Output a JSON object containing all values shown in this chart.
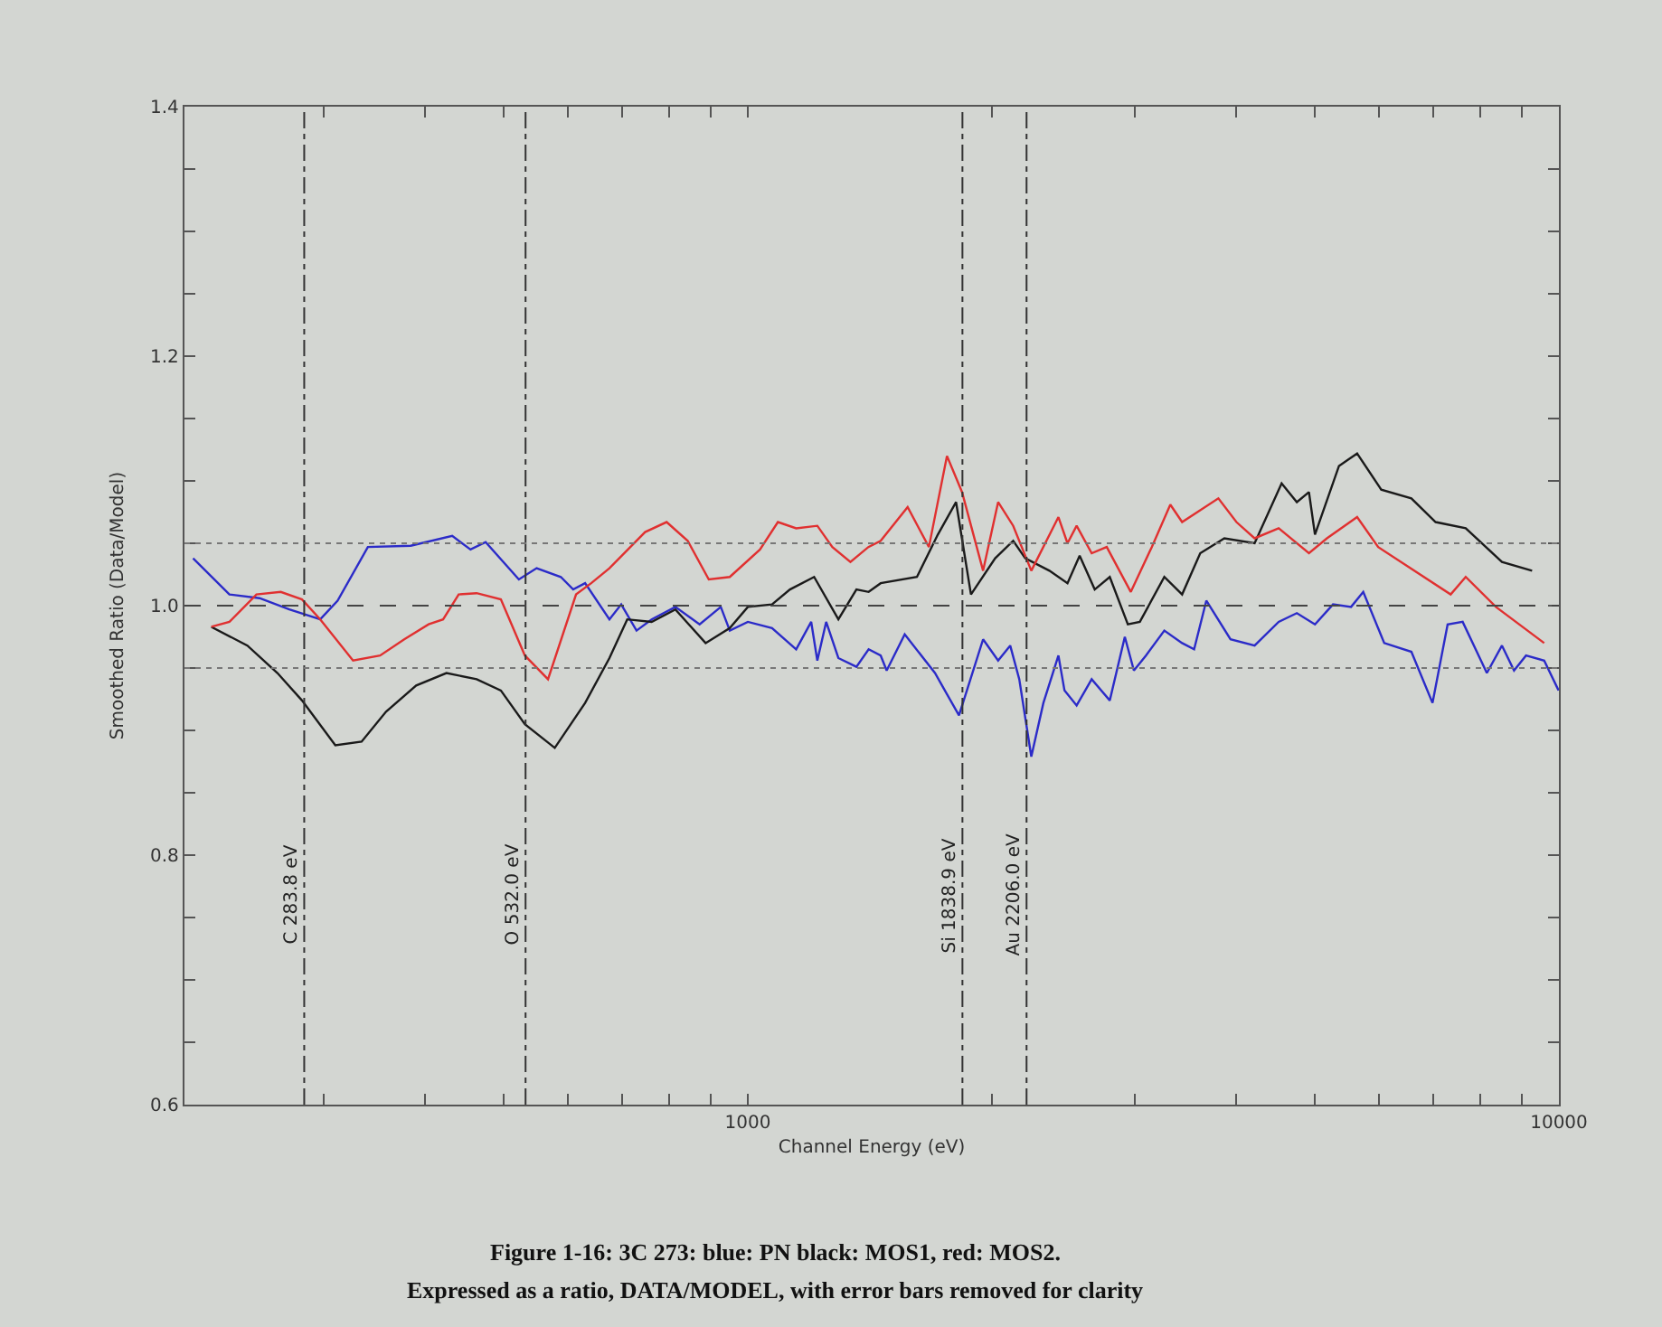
{
  "chart_data": {
    "type": "line",
    "xlabel": "Channel Energy (eV)",
    "ylabel": "Smoothed Ratio (Data/Model)",
    "log": "x",
    "grid": false,
    "marker": "none",
    "line_style": "solid",
    "xlim": [
      202,
      10000
    ],
    "xticks": [
      {
        "value": 300,
        "label": null
      },
      {
        "value": 400,
        "label": null
      },
      {
        "value": 500,
        "label": null
      },
      {
        "value": 600,
        "label": null
      },
      {
        "value": 700,
        "label": null
      },
      {
        "value": 800,
        "label": null
      },
      {
        "value": 900,
        "label": null
      },
      1000,
      {
        "value": 2000,
        "label": null
      },
      {
        "value": 3000,
        "label": null
      },
      {
        "value": 4000,
        "label": null
      },
      {
        "value": 5000,
        "label": null
      },
      {
        "value": 6000,
        "label": null
      },
      {
        "value": 7000,
        "label": null
      },
      {
        "value": 8000,
        "label": null
      },
      {
        "value": 9000,
        "label": null
      },
      10000
    ],
    "ylim": [
      0.6,
      1.4
    ],
    "yticks": [
      0.6,
      {
        "value": 0.65,
        "label": null
      },
      {
        "value": 0.7,
        "label": null
      },
      {
        "value": 0.75,
        "label": null
      },
      0.8,
      {
        "value": 0.85,
        "label": null
      },
      {
        "value": 0.9,
        "label": null
      },
      {
        "value": 0.95,
        "label": null
      },
      {
        "value": 1,
        "label": "1.0"
      },
      {
        "value": 1.05,
        "label": null
      },
      {
        "value": 1.1,
        "label": null
      },
      {
        "value": 1.15,
        "label": null
      },
      1.2,
      {
        "value": 1.25,
        "label": null
      },
      {
        "value": 1.3,
        "label": null
      },
      {
        "value": 1.35,
        "label": null
      },
      1.4
    ],
    "series": [
      {
        "color": "#2b2bc8",
        "x": [
          207,
          229.5,
          250,
          272,
          297,
          312,
          340,
          384,
          432,
          455,
          475,
          522,
          549,
          588,
          609,
          630,
          675,
          698,
          729,
          761,
          814,
          872,
          926,
          950,
          1000,
          1071,
          1147,
          1197,
          1218,
          1249,
          1293,
          1361,
          1409,
          1458,
          1483,
          1561,
          1701,
          1821,
          1950,
          2035,
          2106,
          2161,
          2236,
          2314,
          2415,
          2457,
          2543,
          2654,
          2794,
          2916,
          2992,
          3096,
          3262,
          3431,
          3550,
          3675,
          3936,
          4215,
          4513,
          4752,
          5003,
          5266,
          5543,
          5738,
          6090,
          6578,
          6985,
          7291,
          7609,
          8150,
          8507,
          8804,
          9109,
          9590,
          9990
        ],
        "values": [
          1.038,
          1.009,
          1.006,
          0.997,
          0.989,
          1.004,
          1.047,
          1.048,
          1.056,
          1.045,
          1.051,
          1.021,
          1.03,
          1.023,
          1.013,
          1.018,
          0.989,
          1.001,
          0.98,
          0.989,
          0.999,
          0.985,
          0.999,
          0.98,
          0.987,
          0.982,
          0.965,
          0.987,
          0.956,
          0.987,
          0.958,
          0.951,
          0.965,
          0.96,
          0.948,
          0.977,
          0.946,
          0.912,
          0.973,
          0.956,
          0.968,
          0.941,
          0.879,
          0.922,
          0.96,
          0.932,
          0.92,
          0.941,
          0.924,
          0.975,
          0.948,
          0.96,
          0.98,
          0.97,
          0.965,
          1.004,
          0.973,
          0.968,
          0.987,
          0.994,
          0.985,
          1.001,
          0.999,
          1.011,
          0.97,
          0.963,
          0.922,
          0.985,
          0.987,
          0.946,
          0.968,
          0.948,
          0.96,
          0.956,
          0.932
        ]
      },
      {
        "color": "#1a1a1a",
        "x": [
          218,
          241.5,
          263,
          282,
          310,
          334,
          358,
          390,
          425,
          463,
          496,
          531,
          578,
          630,
          675,
          710,
          761,
          814,
          887,
          950,
          1000,
          1071,
          1127,
          1207,
          1293,
          1361,
          1409,
          1458,
          1616,
          1715,
          1806,
          1884,
          2018,
          2124,
          2198,
          2354,
          2478,
          2565,
          2677,
          2794,
          2941,
          3043,
          3262,
          3431,
          3612,
          3868,
          4215,
          4551,
          4752,
          4918,
          5003,
          5356,
          5639,
          6038,
          6578,
          7046,
          7675,
          8507,
          9267
        ],
        "values": [
          0.983,
          0.968,
          0.946,
          0.924,
          0.888,
          0.891,
          0.915,
          0.936,
          0.946,
          0.941,
          0.932,
          0.905,
          0.886,
          0.922,
          0.958,
          0.989,
          0.987,
          0.997,
          0.97,
          0.982,
          0.999,
          1.001,
          1.013,
          1.023,
          0.989,
          1.013,
          1.011,
          1.018,
          1.023,
          1.057,
          1.083,
          1.009,
          1.038,
          1.052,
          1.038,
          1.028,
          1.018,
          1.04,
          1.013,
          1.023,
          0.985,
          0.987,
          1.023,
          1.009,
          1.042,
          1.054,
          1.05,
          1.098,
          1.083,
          1.091,
          1.057,
          1.112,
          1.122,
          1.093,
          1.086,
          1.067,
          1.062,
          1.035,
          1.028
        ]
      },
      {
        "color": "#e03030",
        "x": [
          218,
          229.5,
          247.8,
          265.5,
          282,
          297,
          326,
          352,
          377,
          404,
          421,
          440,
          463,
          496,
          531,
          567,
          614,
          641,
          675,
          747,
          794,
          843,
          895,
          950,
          1035,
          1089,
          1147,
          1218,
          1271,
          1338,
          1408,
          1458,
          1574,
          1672,
          1760,
          1837,
          1950,
          2035,
          2124,
          2236,
          2415,
          2478,
          2543,
          2654,
          2770,
          2966,
          3148,
          3318,
          3431,
          3803,
          4003,
          4215,
          4513,
          4918,
          5176,
          5639,
          5986,
          7354,
          7675,
          8362,
          9590
        ],
        "values": [
          0.983,
          0.987,
          1.009,
          1.011,
          1.005,
          0.989,
          0.956,
          0.96,
          0.973,
          0.985,
          0.989,
          1.009,
          1.01,
          1.005,
          0.96,
          0.941,
          1.009,
          1.018,
          1.03,
          1.059,
          1.067,
          1.052,
          1.021,
          1.023,
          1.045,
          1.067,
          1.062,
          1.064,
          1.047,
          1.035,
          1.047,
          1.052,
          1.079,
          1.047,
          1.12,
          1.091,
          1.028,
          1.083,
          1.064,
          1.028,
          1.071,
          1.05,
          1.064,
          1.042,
          1.047,
          1.011,
          1.047,
          1.081,
          1.067,
          1.086,
          1.067,
          1.054,
          1.062,
          1.042,
          1.054,
          1.071,
          1.047,
          1.009,
          1.023,
          0.999,
          0.97
        ]
      }
    ],
    "ref_lines": [
      {
        "axis": "x",
        "value": 283.8,
        "label": "C 283.8 eV",
        "line_style": "dashdot",
        "color": "#333333"
      },
      {
        "axis": "x",
        "value": 532.0,
        "label": "O 532.0 eV",
        "line_style": "dashdot",
        "color": "#333333"
      },
      {
        "axis": "x",
        "value": 1838.9,
        "label": "Si 1838.9 eV",
        "line_style": "dashdot",
        "color": "#333333"
      },
      {
        "axis": "x",
        "value": 2206.0,
        "label": "Au 2206.0 eV",
        "line_style": "dashdot",
        "color": "#333333"
      },
      {
        "axis": "y",
        "value": 1.0,
        "line_style": "dashed",
        "color": "#444444"
      },
      {
        "axis": "y",
        "value": 1.05,
        "line_style": "dotted",
        "color": "#777777"
      },
      {
        "axis": "y",
        "value": 0.95,
        "line_style": "dotted",
        "color": "#777777"
      }
    ],
    "annotations": [
      "Figure 1-16: 3C 273: blue: PN black: MOS1, red: MOS2.",
      "Expressed as a ratio, DATA/MODEL, with error bars removed for clarity"
    ]
  }
}
